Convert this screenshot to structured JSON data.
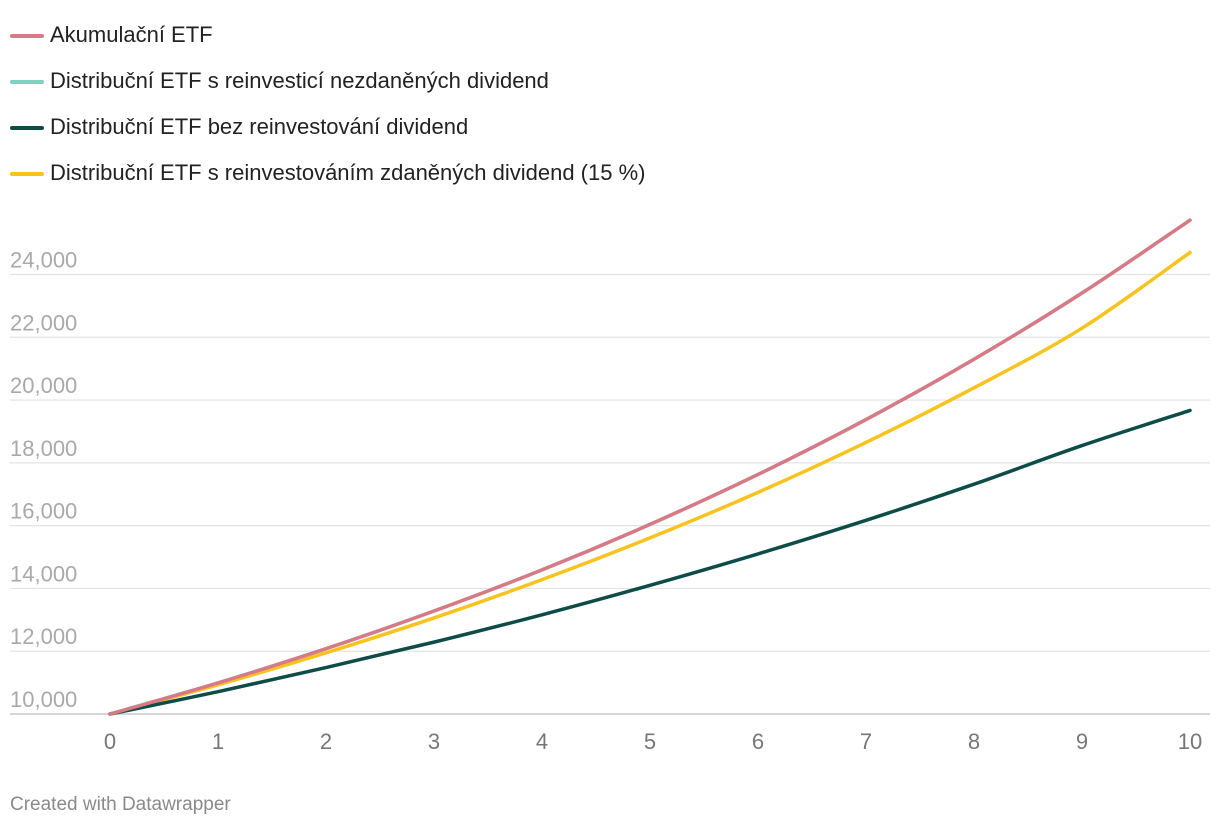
{
  "legend": [
    {
      "label": "Akumulační ETF",
      "color": "#d87a86"
    },
    {
      "label": "Distribuční ETF s reinvesticí nezdaněných dividend",
      "color": "#7dd3c0"
    },
    {
      "label": "Distribuční ETF bez reinvestování dividend",
      "color": "#0e4d47"
    },
    {
      "label": "Distribuční ETF s reinvestováním zdaněných dividend (15 %)",
      "color": "#f7c31c"
    }
  ],
  "footer": {
    "credit": "Created with Datawrapper"
  },
  "chart_data": {
    "type": "line",
    "title": "",
    "xlabel": "",
    "ylabel": "",
    "x": [
      0,
      1,
      2,
      3,
      4,
      5,
      6,
      7,
      8,
      9,
      10
    ],
    "xlim": [
      0,
      10
    ],
    "ylim": [
      10000,
      24000
    ],
    "x_ticks": [
      "0",
      "1",
      "2",
      "3",
      "4",
      "5",
      "6",
      "7",
      "8",
      "9",
      "10"
    ],
    "y_ticks": [
      {
        "value": 10000,
        "label": "10,000"
      },
      {
        "value": 12000,
        "label": "12,000"
      },
      {
        "value": 14000,
        "label": "14,000"
      },
      {
        "value": 16000,
        "label": "16,000"
      },
      {
        "value": 18000,
        "label": "18,000"
      },
      {
        "value": 20000,
        "label": "20,000"
      },
      {
        "value": 22000,
        "label": "22,000"
      },
      {
        "value": 24000,
        "label": "24,000"
      }
    ],
    "grid": true,
    "series": [
      {
        "name": "Akumulační ETF",
        "color": "#d87a86",
        "values": [
          10000,
          10990,
          12080,
          13280,
          14590,
          16040,
          17630,
          19380,
          21300,
          23410,
          25730
        ]
      },
      {
        "name": "Distribuční ETF s reinvesticí nezdaněných dividend",
        "color": "#7dd3c0",
        "values": [
          10000,
          10990,
          12080,
          13280,
          14590,
          16040,
          17630,
          19380,
          21300,
          23410,
          25730
        ]
      },
      {
        "name": "Distribuční ETF bez reinvestování dividend",
        "color": "#0e4d47",
        "values": [
          10000,
          10710,
          11480,
          12290,
          13160,
          14100,
          15100,
          16170,
          17320,
          18550,
          19670
        ]
      },
      {
        "name": "Distribuční ETF s reinvestováním zdaněných dividend (15 %)",
        "color": "#f7c31c",
        "values": [
          10000,
          10930,
          11950,
          13060,
          14280,
          15610,
          17060,
          18650,
          20390,
          22290,
          24700
        ]
      }
    ]
  }
}
